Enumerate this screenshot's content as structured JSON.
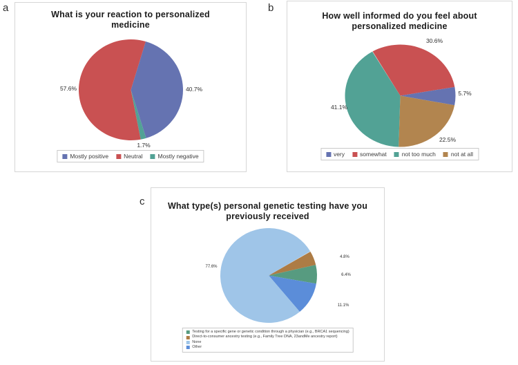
{
  "page": {
    "background": "#ffffff"
  },
  "chart_data": [
    {
      "type": "pie",
      "panel_label": "a",
      "title": "What is your reaction to personalized medicine",
      "legend_position": "bottom",
      "legend_layout": "inline",
      "slices": [
        {
          "label": "Mostly positive",
          "value": 40.7,
          "pct_label": "40.7%",
          "color": "#6573b1"
        },
        {
          "label": "Neutral",
          "value": 57.6,
          "pct_label": "57.6%",
          "color": "#c95152"
        },
        {
          "label": "Mostly negative",
          "value": 1.7,
          "pct_label": "1.7%",
          "color": "#52a295"
        }
      ]
    },
    {
      "type": "pie",
      "panel_label": "b",
      "title": "How well informed do you feel about personalized medicine",
      "legend_position": "bottom",
      "legend_layout": "inline",
      "slices": [
        {
          "label": "very",
          "value": 5.7,
          "pct_label": "5.7%",
          "color": "#6573b1"
        },
        {
          "label": "somewhat",
          "value": 30.6,
          "pct_label": "30.6%",
          "color": "#c95152"
        },
        {
          "label": "not too much",
          "value": 41.1,
          "pct_label": "41.1%",
          "color": "#52a295"
        },
        {
          "label": "not at all",
          "value": 22.5,
          "pct_label": "22.5%",
          "color": "#b2854f"
        }
      ]
    },
    {
      "type": "pie",
      "panel_label": "c",
      "title": "What type(s) personal genetic testing have you previously received",
      "legend_position": "bottom",
      "legend_layout": "stacked",
      "slices": [
        {
          "label": "Testing for a specific gene or genetic condition through a physician (e.g., BRCA1 sequencing)",
          "value": 6.4,
          "pct_label": "6.4%",
          "color": "#579b80"
        },
        {
          "label": "Direct-to-consumer ancestry testing (e.g., Family Tree DNA, 23andMe ancestry report)",
          "value": 4.8,
          "pct_label": "4.8%",
          "color": "#ad7c45"
        },
        {
          "label": "None",
          "value": 77.6,
          "pct_label": "77.6%",
          "color": "#9fc5e8"
        },
        {
          "label": "Other",
          "value": 11.1,
          "pct_label": "11.1%",
          "color": "#5b8dd9"
        }
      ]
    }
  ]
}
